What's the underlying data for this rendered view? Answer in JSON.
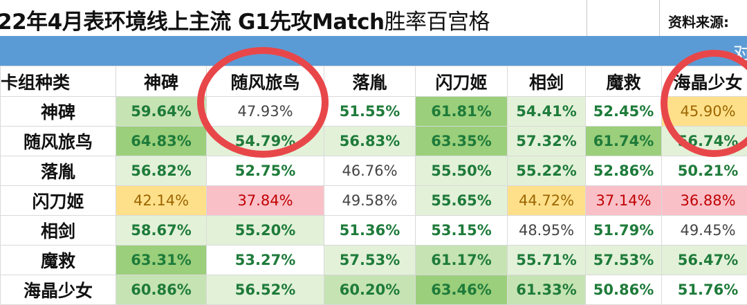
{
  "title": {
    "main": "22年4月表环境线上主流 ",
    "bold": "G1先攻Match",
    "tail": "胜率百宫格"
  },
  "source_label": "资料来源:",
  "bar_text": "对",
  "corner_label": "卡组种类",
  "columns": [
    "神碑",
    "随风旅鸟",
    "落胤",
    "闪刀姬",
    "相剑",
    "魔救",
    "海晶少女"
  ],
  "rows": [
    {
      "label": "神碑",
      "values": [
        "59.64%",
        "47.93%",
        "51.55%",
        "61.81%",
        "54.41%",
        "52.45%",
        "45.90%"
      ]
    },
    {
      "label": "随风旅鸟",
      "values": [
        "64.83%",
        "54.79%",
        "56.83%",
        "63.35%",
        "57.32%",
        "61.74%",
        "56.74%"
      ]
    },
    {
      "label": "落胤",
      "values": [
        "56.82%",
        "52.75%",
        "46.76%",
        "55.50%",
        "55.22%",
        "52.86%",
        "50.21%"
      ]
    },
    {
      "label": "闪刀姬",
      "values": [
        "42.14%",
        "37.84%",
        "49.58%",
        "55.65%",
        "44.72%",
        "37.14%",
        "36.88%"
      ]
    },
    {
      "label": "相剑",
      "values": [
        "58.67%",
        "55.20%",
        "51.36%",
        "53.15%",
        "48.95%",
        "51.79%",
        "49.45%"
      ]
    },
    {
      "label": "魔救",
      "values": [
        "63.31%",
        "53.27%",
        "57.53%",
        "61.17%",
        "55.71%",
        "57.53%",
        "56.47%"
      ]
    },
    {
      "label": "海晶少女",
      "values": [
        "60.86%",
        "56.52%",
        "60.20%",
        "63.46%",
        "61.33%",
        "50.86%",
        "51.76%"
      ]
    }
  ],
  "colors": {
    "strong_green": "#9bcf7b",
    "mid_green": "#c6e3b3",
    "light_green": "#e3f1d9",
    "neutral": "#ffffff",
    "yellow": "#ffe08a",
    "pink": "#f9c0c8",
    "text_green": "#1e7b3a",
    "text_red": "#c00000",
    "text_yellow": "#9c6500",
    "text_neutral": "#444444",
    "annotation_red": "#e8474a"
  }
}
